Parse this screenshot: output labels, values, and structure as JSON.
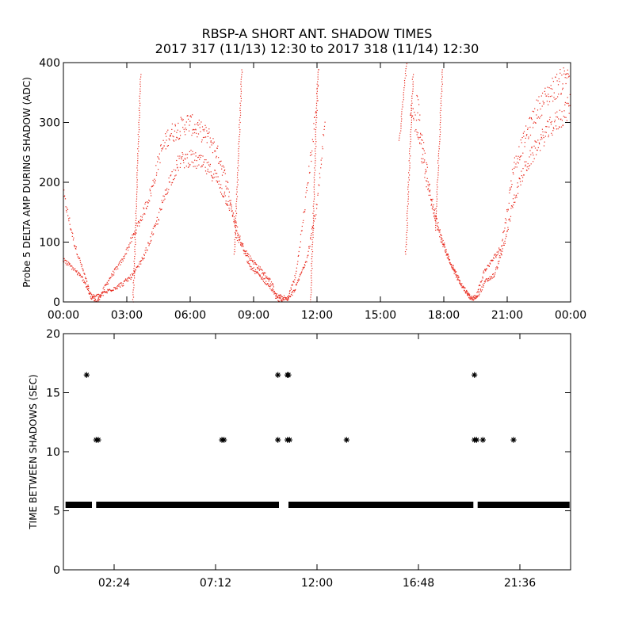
{
  "title_line1": "RBSP-A SHORT ANT. SHADOW TIMES",
  "title_line2": "2017 317 (11/13) 12:30 to 2017 318 (11/14) 12:30",
  "chart_data": [
    {
      "type": "scatter",
      "name": "shadow-amplitude",
      "ylabel": "Probe 5 DELTA AMP DURING SHADOW (ADC)",
      "xlabel": "",
      "xlim_hours": [
        0,
        24
      ],
      "ylim": [
        0,
        400
      ],
      "x_tick_hours": [
        0,
        3,
        6,
        9,
        12,
        15,
        18,
        21,
        24
      ],
      "x_tick_labels": [
        "00:00",
        "03:00",
        "06:00",
        "09:00",
        "12:00",
        "15:00",
        "18:00",
        "21:00",
        "00:00"
      ],
      "y_ticks": [
        0,
        100,
        200,
        300,
        400
      ],
      "y_tick_labels": [
        "0",
        "100",
        "200",
        "300",
        "400"
      ],
      "marker_color": "#e8281c",
      "series": [
        {
          "name": "upper-branch",
          "points": [
            [
              0,
              180
            ],
            [
              0.5,
              100
            ],
            [
              1.0,
              45
            ],
            [
              1.3,
              10
            ],
            [
              1.6,
              0
            ],
            [
              2.2,
              40
            ],
            [
              2.8,
              70
            ],
            [
              3.3,
              110
            ],
            [
              3.8,
              150
            ],
            [
              4.2,
              190
            ],
            [
              4.6,
              250
            ],
            [
              5.0,
              280
            ],
            [
              5.5,
              290
            ],
            [
              5.9,
              300
            ],
            [
              6.3,
              290
            ],
            [
              6.9,
              275
            ],
            [
              7.4,
              240
            ],
            [
              7.8,
              190
            ],
            [
              8.2,
              110
            ],
            [
              8.8,
              75
            ],
            [
              9.3,
              55
            ],
            [
              9.8,
              35
            ],
            [
              10.1,
              10
            ],
            [
              10.6,
              5
            ],
            [
              11.0,
              45
            ],
            [
              11.4,
              150
            ],
            [
              11.8,
              270
            ],
            [
              12.1,
              380
            ],
            [
              16.4,
              330
            ],
            [
              16.8,
              280
            ],
            [
              17.2,
              200
            ],
            [
              17.7,
              130
            ],
            [
              18.2,
              75
            ],
            [
              18.7,
              35
            ],
            [
              19.2,
              10
            ],
            [
              19.5,
              5
            ],
            [
              19.9,
              50
            ],
            [
              20.3,
              70
            ],
            [
              20.7,
              90
            ],
            [
              21.0,
              150
            ],
            [
              21.3,
              225
            ],
            [
              21.8,
              270
            ],
            [
              22.4,
              320
            ],
            [
              23.0,
              350
            ],
            [
              23.6,
              370
            ],
            [
              24,
              390
            ]
          ]
        },
        {
          "name": "lower-branch",
          "points": [
            [
              0,
              70
            ],
            [
              0.5,
              55
            ],
            [
              1.0,
              35
            ],
            [
              1.3,
              8
            ],
            [
              1.7,
              10
            ],
            [
              2.2,
              20
            ],
            [
              2.8,
              30
            ],
            [
              3.3,
              45
            ],
            [
              3.8,
              75
            ],
            [
              4.4,
              130
            ],
            [
              5.0,
              200
            ],
            [
              5.5,
              235
            ],
            [
              6.0,
              240
            ],
            [
              6.6,
              230
            ],
            [
              7.2,
              210
            ],
            [
              7.6,
              180
            ],
            [
              8.0,
              150
            ],
            [
              8.3,
              110
            ],
            [
              8.8,
              60
            ],
            [
              9.4,
              40
            ],
            [
              9.9,
              20
            ],
            [
              10.1,
              5
            ],
            [
              10.6,
              0
            ],
            [
              11.0,
              25
            ],
            [
              11.5,
              70
            ],
            [
              12.0,
              160
            ],
            [
              12.4,
              300
            ],
            [
              16.7,
              350
            ],
            [
              17.0,
              270
            ],
            [
              17.4,
              170
            ],
            [
              17.9,
              100
            ],
            [
              18.4,
              60
            ],
            [
              18.9,
              25
            ],
            [
              19.3,
              5
            ],
            [
              19.6,
              10
            ],
            [
              20.0,
              35
            ],
            [
              20.4,
              45
            ],
            [
              20.9,
              100
            ],
            [
              21.3,
              170
            ],
            [
              21.8,
              220
            ],
            [
              22.4,
              260
            ],
            [
              23.0,
              290
            ],
            [
              23.6,
              310
            ],
            [
              24,
              330
            ]
          ]
        }
      ],
      "spikes": [
        [
          3.3,
          0,
          380
        ],
        [
          8.1,
          80,
          390
        ],
        [
          11.7,
          0,
          390
        ],
        [
          15.9,
          270,
          400
        ],
        [
          16.2,
          80,
          380
        ],
        [
          17.6,
          120,
          390
        ]
      ]
    },
    {
      "type": "scatter",
      "name": "time-between-shadows",
      "ylabel": "TIME BETWEEN SHADOWS (SEC)",
      "xlabel": "",
      "xlim_hours": [
        0,
        24
      ],
      "ylim": [
        0,
        20
      ],
      "x_tick_hours": [
        2.4,
        7.2,
        12.0,
        16.8,
        21.6
      ],
      "x_tick_labels": [
        "02:24",
        "07:12",
        "12:00",
        "16:48",
        "21:36"
      ],
      "y_ticks": [
        0,
        5,
        10,
        15,
        20
      ],
      "y_tick_labels": [
        "0",
        "5",
        "10",
        "15",
        "20"
      ],
      "marker": "asterisk",
      "marker_color": "#000000",
      "baseline_value": 5.5,
      "baseline_segments_hours": [
        [
          0.1,
          1.35
        ],
        [
          1.55,
          10.2
        ],
        [
          10.65,
          19.4
        ],
        [
          19.6,
          23.95
        ]
      ],
      "outliers": [
        {
          "x": 1.1,
          "y": 16.5
        },
        {
          "x": 1.55,
          "y": 11
        },
        {
          "x": 1.65,
          "y": 11
        },
        {
          "x": 7.5,
          "y": 11
        },
        {
          "x": 7.6,
          "y": 11
        },
        {
          "x": 10.15,
          "y": 16.5
        },
        {
          "x": 10.15,
          "y": 11
        },
        {
          "x": 10.6,
          "y": 16.5
        },
        {
          "x": 10.65,
          "y": 16.5
        },
        {
          "x": 10.6,
          "y": 11
        },
        {
          "x": 10.7,
          "y": 11
        },
        {
          "x": 13.4,
          "y": 11
        },
        {
          "x": 19.45,
          "y": 16.5
        },
        {
          "x": 19.45,
          "y": 11
        },
        {
          "x": 19.55,
          "y": 11
        },
        {
          "x": 19.85,
          "y": 11
        },
        {
          "x": 21.3,
          "y": 11
        }
      ]
    }
  ]
}
